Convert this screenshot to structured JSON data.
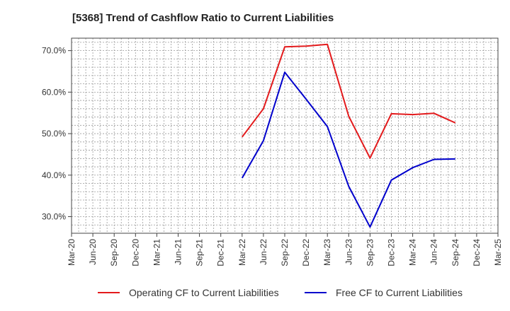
{
  "chart_data": {
    "type": "line",
    "title": "[5368]  Trend of Cashflow Ratio to Current Liabilities",
    "xlabel": "",
    "ylabel": "",
    "categories": [
      "Mar-20",
      "Jun-20",
      "Sep-20",
      "Dec-20",
      "Mar-21",
      "Jun-21",
      "Sep-21",
      "Dec-21",
      "Mar-22",
      "Jun-22",
      "Sep-22",
      "Dec-22",
      "Mar-23",
      "Jun-23",
      "Sep-23",
      "Dec-23",
      "Mar-24",
      "Jun-24",
      "Sep-24",
      "Dec-24",
      "Mar-25"
    ],
    "ylim": [
      26,
      73
    ],
    "yticks": [
      30,
      40,
      50,
      60,
      70
    ],
    "ytick_labels": [
      "30.0%",
      "40.0%",
      "50.0%",
      "60.0%",
      "70.0%"
    ],
    "grid": true,
    "legend_position": "bottom",
    "series": [
      {
        "name": "Operating CF to Current Liabilities",
        "color": "#e31a1c",
        "values": [
          null,
          null,
          null,
          null,
          null,
          null,
          null,
          null,
          49.2,
          56.0,
          70.9,
          71.1,
          71.5,
          54.2,
          44.1,
          54.8,
          54.6,
          54.9,
          52.6,
          null,
          null
        ]
      },
      {
        "name": "Free CF to Current Liabilities",
        "color": "#0000cc",
        "values": [
          null,
          null,
          null,
          null,
          null,
          null,
          null,
          null,
          39.3,
          48.3,
          64.8,
          58.3,
          51.7,
          37.3,
          27.5,
          38.8,
          41.8,
          43.8,
          43.9,
          null,
          null
        ]
      }
    ]
  }
}
